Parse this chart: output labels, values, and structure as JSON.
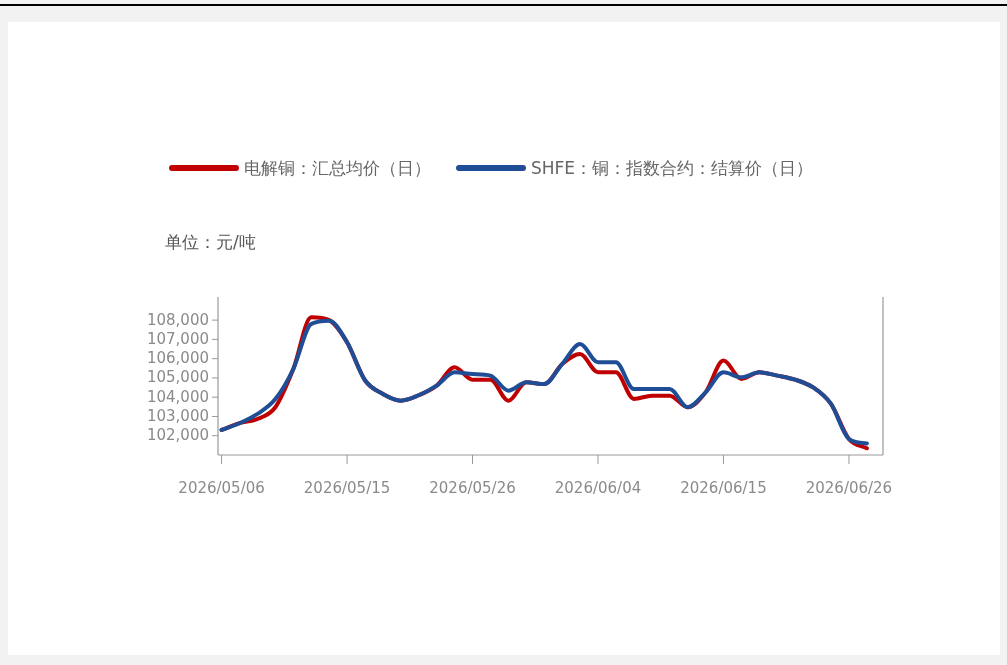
{
  "chart_data": {
    "type": "line",
    "ylabel": "单位：元/吨",
    "categories": [
      "2026/05/06",
      null,
      null,
      null,
      null,
      null,
      null,
      "2026/05/15",
      null,
      null,
      null,
      null,
      null,
      null,
      "2026/05/26",
      null,
      null,
      null,
      null,
      null,
      null,
      "2026/06/04",
      null,
      null,
      null,
      null,
      null,
      null,
      "2026/06/15",
      null,
      null,
      null,
      null,
      null,
      null,
      "2026/06/26",
      null
    ],
    "series": [
      {
        "name": "电解铜：汇总均价（日）",
        "color": "#c00000",
        "values": [
          102300,
          102650,
          102870,
          103480,
          105460,
          108150,
          108000,
          106850,
          104880,
          104170,
          103820,
          104100,
          104600,
          105550,
          104910,
          104910,
          103820,
          104770,
          104680,
          105720,
          106240,
          105290,
          105290,
          103910,
          104080,
          104080,
          103480,
          104250,
          105900,
          104950,
          105290,
          105120,
          104910,
          104510,
          103650,
          101830,
          101350
        ]
      },
      {
        "name": "SHFE：铜：指数合约：结算价（日）",
        "color": "#1f4e96",
        "values": [
          102300,
          102650,
          103130,
          103900,
          105460,
          107800,
          107970,
          106850,
          104880,
          104170,
          103820,
          104100,
          104600,
          105290,
          105200,
          105120,
          104340,
          104770,
          104680,
          105720,
          106760,
          105810,
          105810,
          104420,
          104420,
          104420,
          103480,
          104250,
          105290,
          105030,
          105290,
          105120,
          104910,
          104510,
          103650,
          101830,
          101600
        ]
      }
    ],
    "ylim": [
      101000,
      109200
    ],
    "yticks": [
      {
        "value": 102000,
        "label": "102,000"
      },
      {
        "value": 103000,
        "label": "103,000"
      },
      {
        "value": 104000,
        "label": "104,000"
      },
      {
        "value": 105000,
        "label": "105,000"
      },
      {
        "value": 106000,
        "label": "106,000"
      },
      {
        "value": 107000,
        "label": "107,000"
      },
      {
        "value": 108000,
        "label": "108,000"
      }
    ],
    "grid": false,
    "legend": "top",
    "line_style": "solid",
    "marker": "none"
  }
}
